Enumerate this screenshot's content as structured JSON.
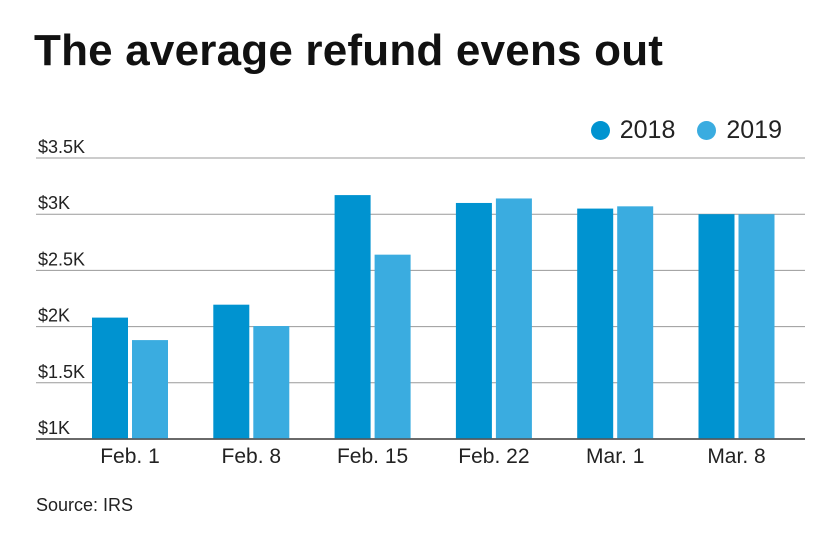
{
  "chart_data": {
    "type": "bar",
    "title": "The average refund evens out",
    "categories": [
      "Feb. 1",
      "Feb. 8",
      "Feb. 15",
      "Feb. 22",
      "Mar. 1",
      "Mar. 8"
    ],
    "series": [
      {
        "name": "2018",
        "color": "#0093D0",
        "values": [
          2080,
          2195,
          3170,
          3100,
          3050,
          3000
        ]
      },
      {
        "name": "2019",
        "color": "#3AACE0",
        "values": [
          1880,
          2005,
          2640,
          3140,
          3070,
          3000
        ]
      }
    ],
    "ylim": [
      1000,
      3500
    ],
    "yticks": [
      1000,
      1500,
      2000,
      2500,
      3000,
      3500
    ],
    "ytick_labels": [
      "$1K",
      "$1.5K",
      "$2K",
      "$2.5K",
      "$3K",
      "$3.5K"
    ],
    "legend_position": "top-right",
    "grid": true,
    "source": "Source: IRS"
  }
}
